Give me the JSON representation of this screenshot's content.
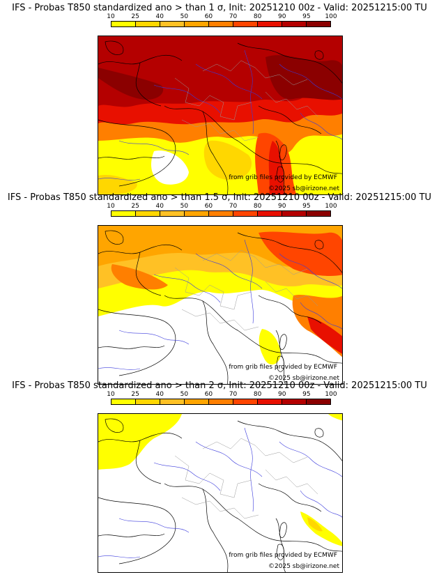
{
  "colorbar": {
    "ticks": [
      "10",
      "25",
      "40",
      "50",
      "60",
      "70",
      "80",
      "90",
      "95",
      "100"
    ],
    "colors": [
      "#ffff00",
      "#ffd700",
      "#ffc125",
      "#ffa500",
      "#ff7f00",
      "#ff4500",
      "#e81000",
      "#b40000",
      "#8b0000"
    ]
  },
  "panels": [
    {
      "title": "IFS - Probas T850  standardized ano > than 1 σ, Init: 20251210 00z - Valid: 20251215:00 TU",
      "credit_source": "from grib files provided by ECMWF",
      "credit_copyright": "©2025 sb@irizone.net"
    },
    {
      "title": "IFS - Probas T850  standardized ano > than 1.5 σ, Init: 20251210 00z - Valid: 20251215:00 TU",
      "credit_source": "from grib files provided by ECMWF",
      "credit_copyright": "©2025 sb@irizone.net"
    },
    {
      "title": "IFS - Probas T850  standardized ano > than 2 σ, Init: 20251210 00z - Valid: 20251215:00 TU",
      "credit_source": "from grib files provided by ECMWF",
      "credit_copyright": "©2025 sb@irizone.net"
    }
  ]
}
